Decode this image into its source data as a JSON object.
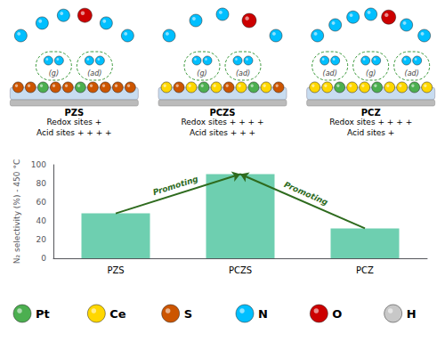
{
  "chart_data": {
    "type": "bar",
    "categories": [
      "PZS",
      "PCZS",
      "PCZ"
    ],
    "values": [
      48,
      90,
      32
    ],
    "color": "#6ECFB0",
    "ylabel": "N₂ selectivity (%) - 450 °C",
    "ylim": [
      0,
      100
    ],
    "yticks": [
      0,
      20,
      40,
      60,
      80,
      100
    ],
    "grid": false,
    "annotations": [
      {
        "text": "Promoting",
        "from": "PZS",
        "to": "PCZS"
      },
      {
        "text": "Promoting",
        "from": "PCZ",
        "to": "PCZS"
      }
    ],
    "arrow_color": "#2E6B1E",
    "ellipse_color": "#228B22",
    "slab_colors": [
      "#C8DCF0",
      "#BBBBBB"
    ],
    "adsorbate": "N",
    "panels": [
      {
        "surface": [
          "S",
          "S",
          "Pt",
          "S",
          "S",
          "Pt",
          "S",
          "S",
          "S",
          "S"
        ],
        "gas": [
          "N",
          "N",
          "N",
          "O",
          "N",
          "N"
        ],
        "species_labels": [
          "(g)",
          "(ad)"
        ],
        "site_texts": [
          "Redox sites +",
          "Acid sites + + + +"
        ]
      },
      {
        "surface": [
          "Ce",
          "S",
          "Ce",
          "Pt",
          "Ce",
          "S",
          "Ce",
          "Pt",
          "Ce",
          "S"
        ],
        "gas": [
          "N",
          "N",
          "N",
          "O",
          "N"
        ],
        "species_labels": [
          "(g)",
          "(ad)"
        ],
        "site_texts": [
          "Redox sites + + + +",
          "Acid sites + + +"
        ]
      },
      {
        "surface": [
          "Ce",
          "Ce",
          "Pt",
          "Ce",
          "Ce",
          "Pt",
          "Ce",
          "Ce",
          "Pt",
          "Ce"
        ],
        "gas": [
          "N",
          "N",
          "N",
          "N",
          "O",
          "N",
          "N"
        ],
        "species_labels": [
          "(ad)",
          "(g)",
          "(ad)"
        ],
        "site_texts": [
          "Redox sites + + + +",
          "Acid sites +"
        ]
      }
    ],
    "key": [
      {
        "name": "Pt",
        "color": "#4CAF50"
      },
      {
        "name": "Ce",
        "color": "#FFD700"
      },
      {
        "name": "S",
        "color": "#CC5500"
      },
      {
        "name": "N",
        "color": "#00BFFF"
      },
      {
        "name": "O",
        "color": "#CC0000"
      },
      {
        "name": "H",
        "color": "#C8C8C8"
      }
    ]
  }
}
